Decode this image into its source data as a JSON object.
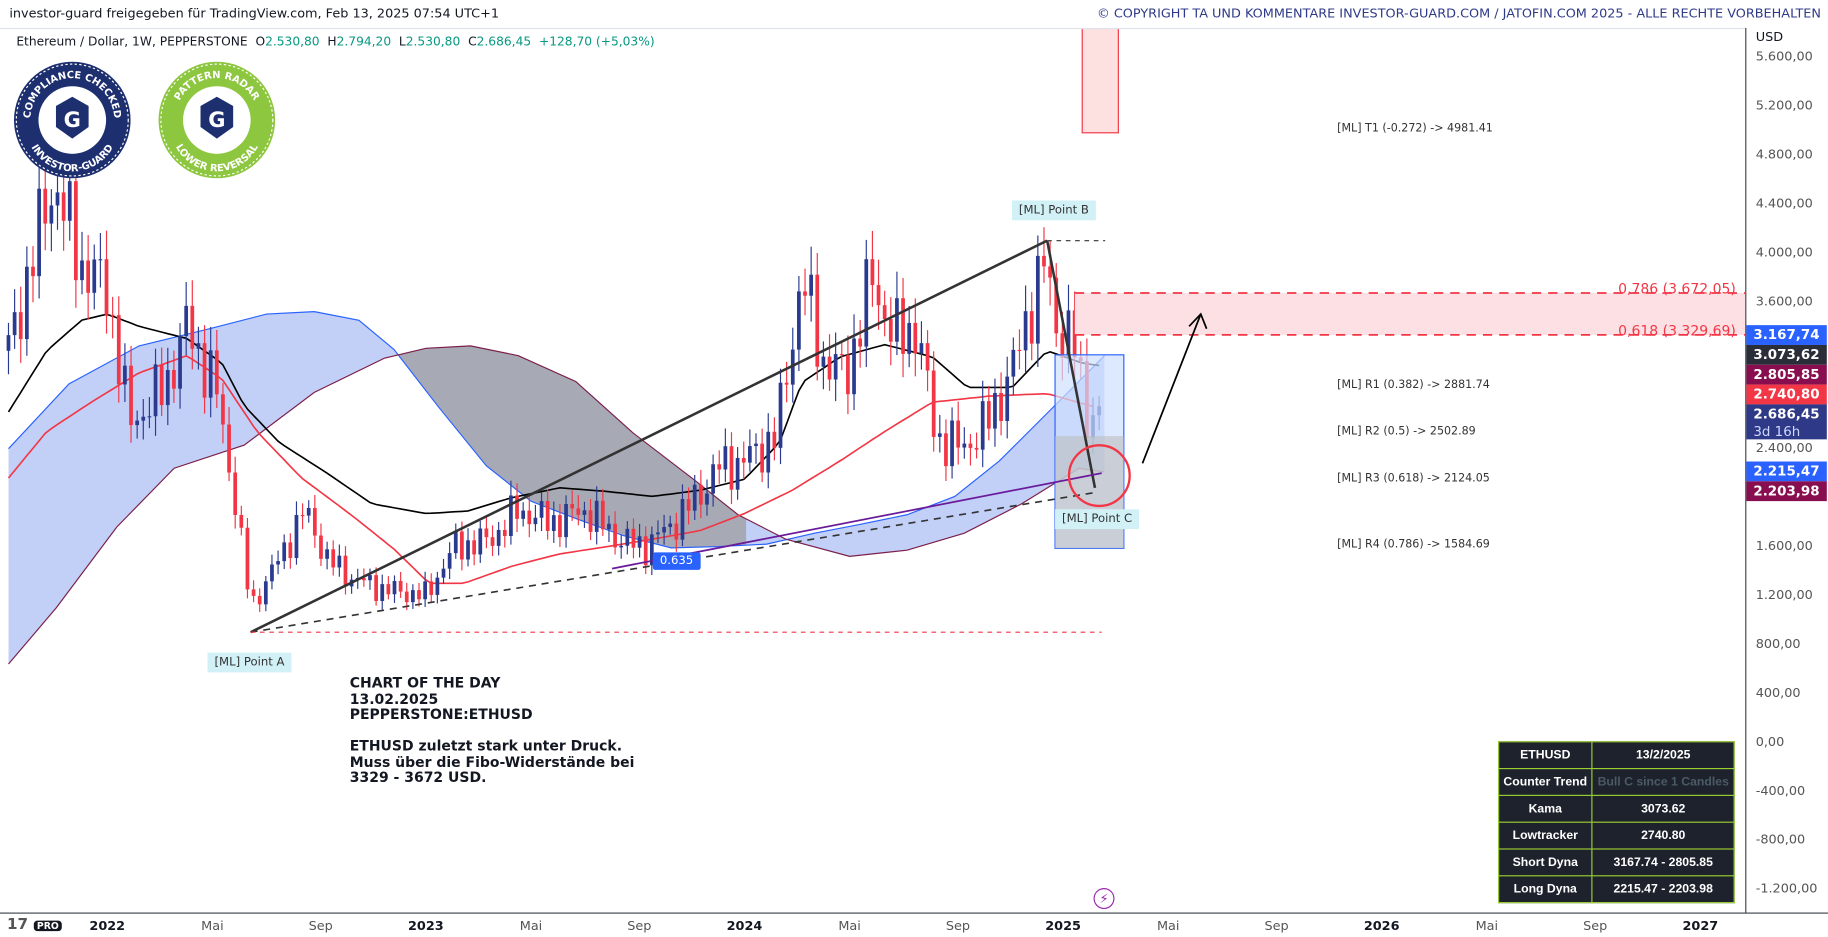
{
  "header": {
    "shared_by": "investor-guard freigegeben für TradingView.com, Feb 13, 2025 07:54 UTC+1",
    "copyright": "© COPYRIGHT TA UND KOMMENTARE INVESTOR-GUARD.COM / JATOFIN.COM 2025 - ALLE RECHTE VORBEHALTEN"
  },
  "legend": {
    "symbol": "Ethereum / Dollar, 1W, PEPPERSTONE",
    "o_label": "O",
    "o": "2.530,80",
    "h_label": "H",
    "h": "2.794,20",
    "l_label": "L",
    "l": "2.530,80",
    "c_label": "C",
    "c": "2.686,45",
    "change": "+128,70 (+5,03%)"
  },
  "logos": [
    {
      "top": "COMPLIANCE CHECKED",
      "bottom": "INVESTOR-GUARD",
      "color": "#1d2f6f"
    },
    {
      "top": "PATTERN RADAR",
      "bottom": "LOWER REVERSAL",
      "color": "#8dc63f"
    }
  ],
  "price_axis": {
    "currency": "USD",
    "labels": [
      "5.600,00",
      "5.200,00",
      "4.800,00",
      "4.400,00",
      "4.000,00",
      "3.600,00",
      "2.400,00",
      "1.600,00",
      "1.200,00",
      "800,00",
      "400,00",
      "0,00",
      "-400,00",
      "-800,00",
      "-1.200,00"
    ],
    "values": [
      5600,
      5200,
      4800,
      4400,
      4000,
      3600,
      2400,
      1600,
      1200,
      800,
      400,
      0,
      -400,
      -800,
      -1200
    ]
  },
  "price_badges": [
    {
      "label": "3.167,74",
      "value": 3167.74,
      "color": "#2962ff"
    },
    {
      "label": "3.073,62",
      "value": 3073.62,
      "color": "#2a2e39"
    },
    {
      "label": "2.805,85",
      "value": 2805.85,
      "color": "#880e4f"
    },
    {
      "label": "2.740,80",
      "value": 2740.8,
      "color": "#f23645"
    },
    {
      "label": "2.686,45",
      "sub": "3d 16h",
      "value": 2686.45,
      "color": "#2e3a87"
    },
    {
      "label": "2.215,47",
      "value": 2215.47,
      "color": "#2962ff"
    },
    {
      "label": "2.203,98",
      "value": 2203.98,
      "color": "#880e4f"
    }
  ],
  "time_axis": [
    {
      "label": "2022",
      "year": 2022.0,
      "bold": true
    },
    {
      "label": "Mai",
      "year": 2022.33
    },
    {
      "label": "Sep",
      "year": 2022.67
    },
    {
      "label": "2023",
      "year": 2023.0,
      "bold": true
    },
    {
      "label": "Mai",
      "year": 2023.33
    },
    {
      "label": "Sep",
      "year": 2023.67
    },
    {
      "label": "2024",
      "year": 2024.0,
      "bold": true
    },
    {
      "label": "Mai",
      "year": 2024.33
    },
    {
      "label": "Sep",
      "year": 2024.67
    },
    {
      "label": "2025",
      "year": 2025.0,
      "bold": true
    },
    {
      "label": "Mai",
      "year": 2025.33
    },
    {
      "label": "Sep",
      "year": 2025.67
    },
    {
      "label": "2026",
      "year": 2026.0,
      "bold": true
    },
    {
      "label": "Mai",
      "year": 2026.33
    },
    {
      "label": "Sep",
      "year": 2026.67
    },
    {
      "label": "2027",
      "year": 2027.0,
      "bold": true
    }
  ],
  "annotations": {
    "ml_levels": [
      {
        "label": "[ML] T1 (-0.272) -> 4981.41",
        "value": 4981.41
      },
      {
        "label": "[ML] R1 (0.382) -> 2881.74",
        "value": 2881.74
      },
      {
        "label": "[ML] R2 (0.5) -> 2502.89",
        "value": 2502.89
      },
      {
        "label": "[ML] R3 (0.618) -> 2124.05",
        "value": 2124.05
      },
      {
        "label": "[ML] R4 (0.786) -> 1584.69",
        "value": 1584.69
      }
    ],
    "fib": [
      {
        "label": "0,786 (3.672,05)",
        "value": 3672.05
      },
      {
        "label": "0,618 (3.329,69)",
        "value": 3329.69
      }
    ],
    "points": [
      {
        "label": "[ML] Point A",
        "year": 2022.45,
        "value": 900
      },
      {
        "label": "[ML] Point  B",
        "year": 2024.95,
        "value": 4100
      },
      {
        "label": "[ML] Point  C",
        "year": 2025.1,
        "value": 2080
      }
    ],
    "ratio": "0.635",
    "note": "CHART OF THE DAY\n13.02.2025\nPEPPERSTONE:ETHUSD\n\nETHUSD zuletzt stark unter Druck.\nMuss über die Fibo-Widerstände bei\n3329 - 3672 USD."
  },
  "table": {
    "rows": [
      [
        "ETHUSD",
        "13/2/2025"
      ],
      [
        "Counter Trend",
        "Bull C since 1 Candles"
      ],
      [
        "Kama",
        "3073.62"
      ],
      [
        "Lowtracker",
        "2740.80"
      ],
      [
        "Short Dyna",
        "3167.74 - 2805.85"
      ],
      [
        "Long Dyna",
        "2215.47 - 2203.98"
      ]
    ]
  },
  "branding": {
    "logo": "17",
    "pro": "PRO"
  },
  "colors": {
    "up": "#2a3b8f",
    "down": "#f23645",
    "kama": "#000000",
    "lowtracker": "#f23645",
    "cloud": "#8fa8f0",
    "cloud_gray": "#9e9e9e",
    "slow": "#7b1f4a"
  },
  "chart_data": {
    "type": "candlestick",
    "title": "Ethereum / Dollar, 1W, PEPPERSTONE",
    "xlabel": "",
    "ylabel": "USD",
    "ylim": [
      -1400,
      5800
    ],
    "xlim": [
      2021.69,
      2027.1
    ],
    "grid": false,
    "close_anchors": [
      [
        2021.69,
        3200
      ],
      [
        2021.83,
        4600
      ],
      [
        2021.92,
        3900
      ],
      [
        2022.0,
        3700
      ],
      [
        2022.07,
        2600
      ],
      [
        2022.18,
        2900
      ],
      [
        2022.25,
        3400
      ],
      [
        2022.34,
        2900
      ],
      [
        2022.4,
        2000
      ],
      [
        2022.45,
        1100
      ],
      [
        2022.54,
        1500
      ],
      [
        2022.62,
        1900
      ],
      [
        2022.69,
        1500
      ],
      [
        2022.76,
        1350
      ],
      [
        2022.87,
        1250
      ],
      [
        2023.0,
        1200
      ],
      [
        2023.09,
        1600
      ],
      [
        2023.2,
        1650
      ],
      [
        2023.29,
        1900
      ],
      [
        2023.39,
        1800
      ],
      [
        2023.5,
        1900
      ],
      [
        2023.61,
        1650
      ],
      [
        2023.69,
        1600
      ],
      [
        2023.78,
        1800
      ],
      [
        2023.85,
        2000
      ],
      [
        2023.92,
        2250
      ],
      [
        2024.0,
        2300
      ],
      [
        2024.1,
        2500
      ],
      [
        2024.18,
        3800
      ],
      [
        2024.25,
        3100
      ],
      [
        2024.32,
        3000
      ],
      [
        2024.4,
        3800
      ],
      [
        2024.47,
        3300
      ],
      [
        2024.54,
        3400
      ],
      [
        2024.6,
        2500
      ],
      [
        2024.68,
        2400
      ],
      [
        2024.76,
        2600
      ],
      [
        2024.85,
        3100
      ],
      [
        2024.9,
        3600
      ],
      [
        2024.94,
        3900
      ],
      [
        2024.98,
        3400
      ],
      [
        2025.03,
        3300
      ],
      [
        2025.07,
        2700
      ],
      [
        2025.11,
        2686
      ]
    ],
    "kama": [
      [
        2021.69,
        2700
      ],
      [
        2021.81,
        3200
      ],
      [
        2021.92,
        3450
      ],
      [
        2022.0,
        3500
      ],
      [
        2022.1,
        3400
      ],
      [
        2022.25,
        3300
      ],
      [
        2022.36,
        3100
      ],
      [
        2022.43,
        2750
      ],
      [
        2022.54,
        2450
      ],
      [
        2022.69,
        2200
      ],
      [
        2022.83,
        1950
      ],
      [
        2023.0,
        1870
      ],
      [
        2023.13,
        1890
      ],
      [
        2023.27,
        2000
      ],
      [
        2023.42,
        2080
      ],
      [
        2023.57,
        2050
      ],
      [
        2023.71,
        2010
      ],
      [
        2023.86,
        2060
      ],
      [
        2024.0,
        2150
      ],
      [
        2024.11,
        2450
      ],
      [
        2024.18,
        2940
      ],
      [
        2024.3,
        3150
      ],
      [
        2024.44,
        3250
      ],
      [
        2024.59,
        3150
      ],
      [
        2024.7,
        2900
      ],
      [
        2024.84,
        2900
      ],
      [
        2024.95,
        3200
      ],
      [
        2025.06,
        3100
      ],
      [
        2025.13,
        3073
      ]
    ],
    "lowtracker": [
      [
        2021.69,
        2160
      ],
      [
        2021.81,
        2540
      ],
      [
        2021.95,
        2780
      ],
      [
        2022.1,
        3020
      ],
      [
        2022.25,
        3160
      ],
      [
        2022.36,
        2970
      ],
      [
        2022.47,
        2540
      ],
      [
        2022.61,
        2160
      ],
      [
        2022.76,
        1870
      ],
      [
        2022.9,
        1580
      ],
      [
        2023.01,
        1300
      ],
      [
        2023.12,
        1300
      ],
      [
        2023.27,
        1440
      ],
      [
        2023.42,
        1540
      ],
      [
        2023.57,
        1600
      ],
      [
        2023.71,
        1660
      ],
      [
        2023.86,
        1730
      ],
      [
        2024.0,
        1870
      ],
      [
        2024.15,
        2060
      ],
      [
        2024.3,
        2300
      ],
      [
        2024.44,
        2540
      ],
      [
        2024.59,
        2780
      ],
      [
        2024.77,
        2830
      ],
      [
        2024.95,
        2850
      ],
      [
        2025.1,
        2740
      ]
    ],
    "cloud_fast": [
      [
        2021.69,
        2400
      ],
      [
        2021.88,
        2930
      ],
      [
        2022.1,
        3240
      ],
      [
        2022.32,
        3380
      ],
      [
        2022.5,
        3500
      ],
      [
        2022.65,
        3520
      ],
      [
        2022.79,
        3450
      ],
      [
        2022.9,
        3210
      ],
      [
        2023.04,
        2740
      ],
      [
        2023.19,
        2260
      ],
      [
        2023.33,
        1970
      ],
      [
        2023.48,
        1820
      ],
      [
        2023.62,
        1690
      ],
      [
        2023.77,
        1590
      ],
      [
        2023.92,
        1600
      ],
      [
        2024.07,
        1620
      ],
      [
        2024.22,
        1710
      ],
      [
        2024.36,
        1780
      ],
      [
        2024.51,
        1860
      ],
      [
        2024.66,
        2010
      ],
      [
        2024.8,
        2300
      ],
      [
        2024.95,
        2690
      ],
      [
        2025.13,
        3160
      ]
    ],
    "cloud_slow": [
      [
        2021.69,
        640
      ],
      [
        2021.84,
        1100
      ],
      [
        2022.03,
        1760
      ],
      [
        2022.21,
        2240
      ],
      [
        2022.43,
        2430
      ],
      [
        2022.65,
        2860
      ],
      [
        2022.87,
        3140
      ],
      [
        2023.0,
        3220
      ],
      [
        2023.14,
        3240
      ],
      [
        2023.29,
        3160
      ],
      [
        2023.47,
        2950
      ],
      [
        2023.65,
        2530
      ],
      [
        2023.84,
        2150
      ],
      [
        2023.98,
        1860
      ],
      [
        2024.13,
        1660
      ],
      [
        2024.33,
        1520
      ],
      [
        2024.51,
        1570
      ],
      [
        2024.69,
        1710
      ],
      [
        2024.87,
        1950
      ],
      [
        2025.05,
        2240
      ],
      [
        2025.13,
        2210
      ]
    ]
  }
}
